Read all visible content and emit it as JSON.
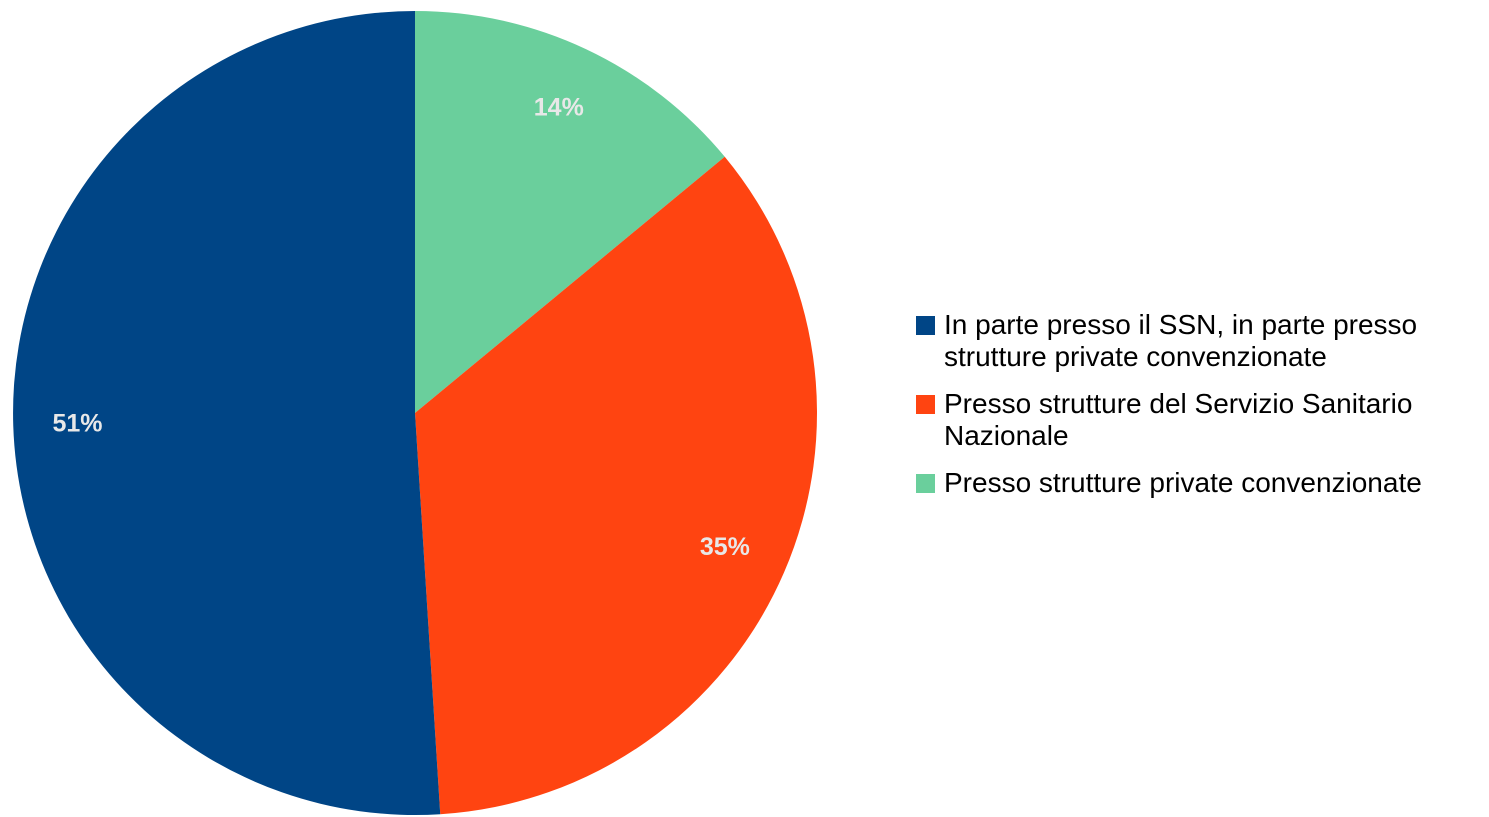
{
  "chart_data": {
    "type": "pie",
    "title": "",
    "slices": [
      {
        "label": "Presso strutture private convenzionate",
        "value": 14,
        "value_label": "14%",
        "color": "#6acf9c"
      },
      {
        "label": "Presso strutture del Servizio Sanitario Nazionale",
        "value": 35,
        "value_label": "35%",
        "color": "#ff4411"
      },
      {
        "label": "In parte presso il SSN, in parte presso strutture private convenzionate",
        "value": 51,
        "value_label": "51%",
        "color": "#004586"
      }
    ],
    "legend": {
      "placement": "right",
      "items": [
        {
          "label": "In parte presso il SSN, in parte presso strutture private convenzionate",
          "color": "#004586"
        },
        {
          "label": "Presso strutture del Servizio Sanitario Nazionale",
          "color": "#ff4411"
        },
        {
          "label": "Presso strutture private convenzionate",
          "color": "#6acf9c"
        }
      ]
    },
    "start_angle": "12 o'clock",
    "direction": "clockwise"
  }
}
